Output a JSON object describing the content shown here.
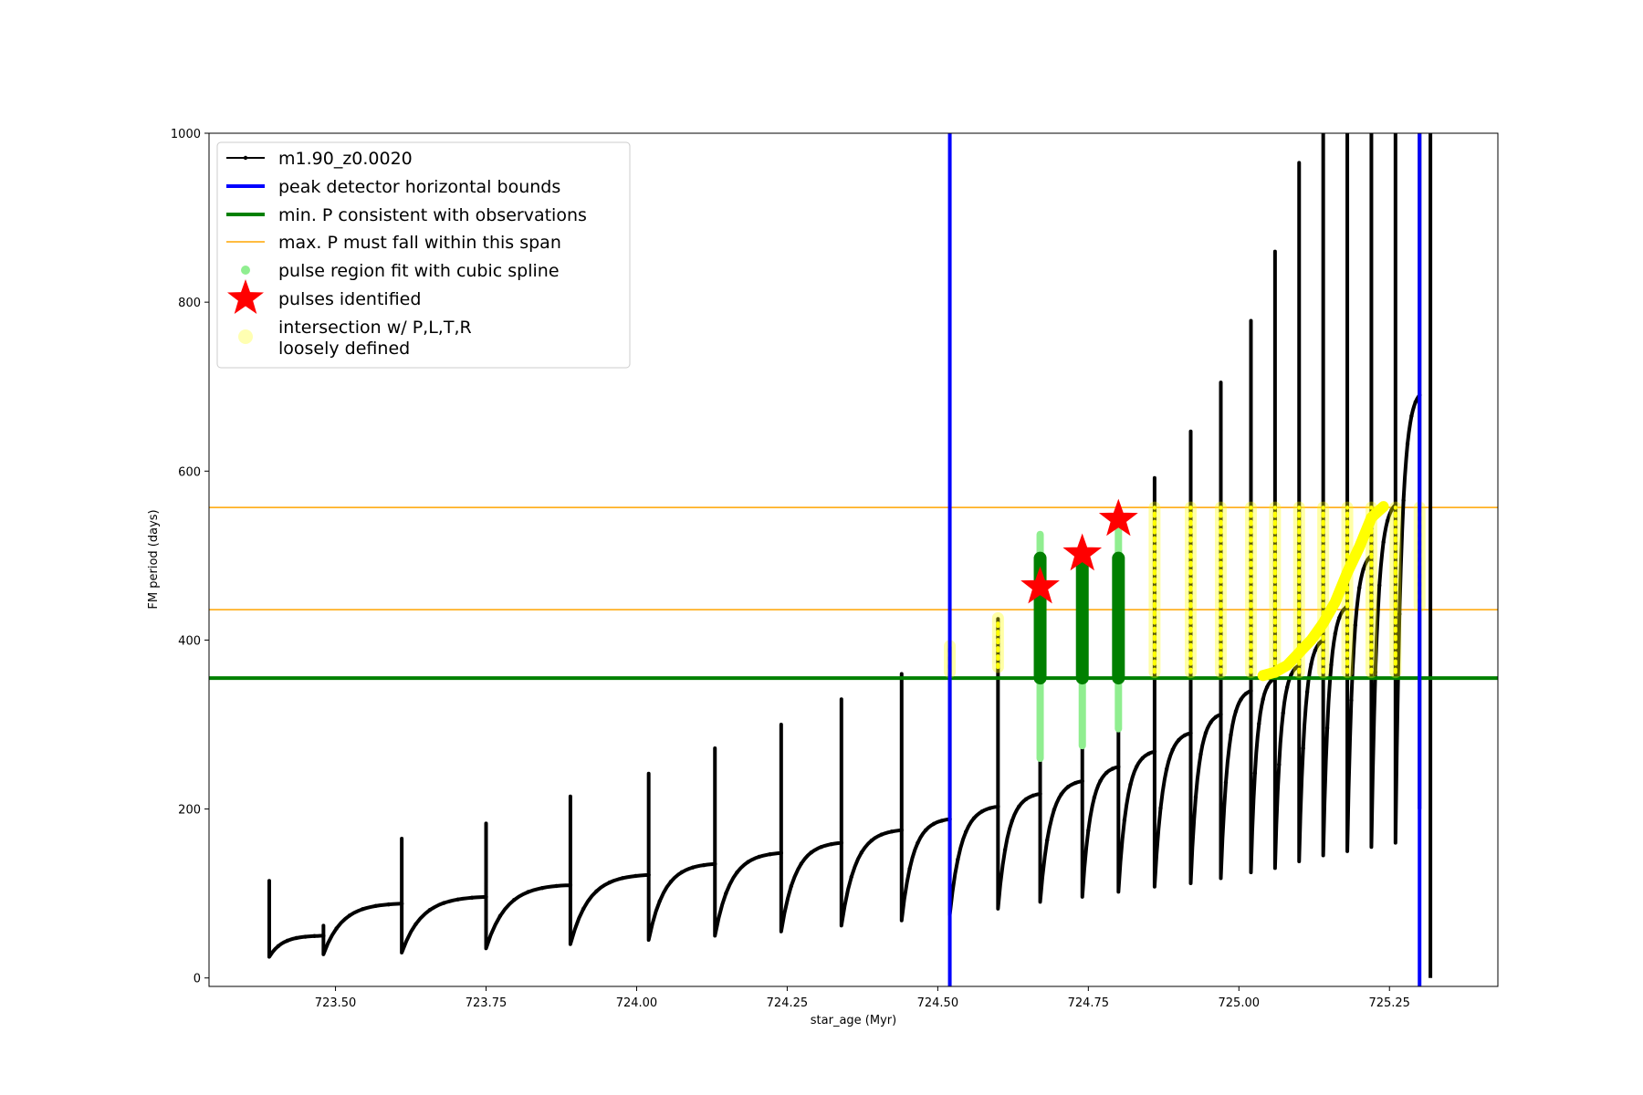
{
  "chart_data": {
    "type": "line",
    "title": "",
    "xlabel": "star_age (Myr)",
    "ylabel": "FM period (days)",
    "xlim": [
      723.29,
      725.43
    ],
    "ylim": [
      -10,
      1000
    ],
    "xticks": [
      "723.50",
      "723.75",
      "724.00",
      "724.25",
      "724.50",
      "724.75",
      "725.00",
      "725.25"
    ],
    "yticks": [
      "0",
      "200",
      "400",
      "600",
      "800",
      "1000"
    ],
    "grid": false,
    "legend_position": "top-left",
    "colors": {
      "track": "#000000",
      "bounds": "#0000ff",
      "min_p": "#008000",
      "max_p_span": "#ffa500",
      "spline_fit": "#90ee90",
      "spline_core": "#008000",
      "pulse_star": "#ff0000",
      "intersection": "#ffff00"
    },
    "series": [
      {
        "name": "m1.90_z0.0020",
        "kind": "track",
        "pulse_ages": [
          723.39,
          723.48,
          723.61,
          723.75,
          723.89,
          724.02,
          724.13,
          724.24,
          724.34,
          724.44,
          724.52,
          724.6,
          724.67,
          724.74,
          724.8,
          724.86,
          724.92,
          724.97,
          725.02,
          725.06,
          725.1,
          725.14,
          725.18,
          725.22,
          725.26,
          725.3
        ],
        "spike_tops": [
          115,
          62,
          165,
          183,
          215,
          242,
          272,
          300,
          330,
          360,
          392,
          425,
          495,
          500,
          505,
          592,
          647,
          705,
          778,
          860,
          965,
          1000,
          1000,
          1000,
          1000,
          1000
        ],
        "minima": [
          25,
          28,
          30,
          35,
          40,
          45,
          50,
          55,
          62,
          68,
          75,
          82,
          90,
          96,
          102,
          108,
          112,
          118,
          125,
          130,
          138,
          145,
          150,
          155,
          160,
          200
        ],
        "plateaus": [
          50,
          88,
          96,
          110,
          122,
          135,
          148,
          160,
          175,
          188,
          203,
          218,
          233,
          250,
          268,
          290,
          312,
          340,
          355,
          370,
          400,
          440,
          500,
          560,
          690,
          1000
        ]
      },
      {
        "name": "peak detector horizontal bounds",
        "kind": "vline",
        "x": [
          724.52,
          725.3
        ]
      },
      {
        "name": "min. P consistent with observations",
        "kind": "hline",
        "y": [
          355
        ]
      },
      {
        "name": "max. P must fall within this span",
        "kind": "hline",
        "y": [
          436,
          557
        ]
      },
      {
        "name": "pulse region fit with cubic spline",
        "kind": "vertical-bands",
        "bands": [
          {
            "x": 724.67,
            "y_min": 260,
            "y_max": 525,
            "core_min": 355,
            "core_max": 497
          },
          {
            "x": 724.74,
            "y_min": 275,
            "y_max": 505,
            "core_min": 355,
            "core_max": 500
          },
          {
            "x": 724.8,
            "y_min": 295,
            "y_max": 540,
            "core_min": 355,
            "core_max": 497
          }
        ]
      },
      {
        "name": "pulses identified",
        "kind": "markers",
        "points": [
          {
            "x": 724.67,
            "y": 463
          },
          {
            "x": 724.74,
            "y": 502
          },
          {
            "x": 724.8,
            "y": 543
          }
        ]
      },
      {
        "name": "intersection w/ P,L,T,R\nloosely defined",
        "kind": "segments",
        "segments": [
          {
            "x": 724.52,
            "y_min": 362,
            "y_max": 393
          },
          {
            "x": 724.6,
            "y_min": 368,
            "y_max": 426
          },
          {
            "x": 724.86,
            "y_min": 362,
            "y_max": 557
          },
          {
            "x": 724.92,
            "y_min": 362,
            "y_max": 557
          },
          {
            "x": 724.97,
            "y_min": 362,
            "y_max": 557
          },
          {
            "x": 725.02,
            "y_min": 362,
            "y_max": 557
          },
          {
            "x": 725.06,
            "y_min": 362,
            "y_max": 557
          },
          {
            "x": 725.1,
            "y_min": 362,
            "y_max": 557
          },
          {
            "x": 725.14,
            "y_min": 362,
            "y_max": 557
          },
          {
            "x": 725.18,
            "y_min": 362,
            "y_max": 557
          },
          {
            "x": 725.22,
            "y_min": 362,
            "y_max": 557
          },
          {
            "x": 725.26,
            "y_min": 362,
            "y_max": 557
          },
          {
            "x": 725.3,
            "y_min": 440,
            "y_max": 557
          }
        ],
        "curve": [
          [
            725.04,
            358
          ],
          [
            725.06,
            362
          ],
          [
            725.08,
            370
          ],
          [
            725.1,
            385
          ],
          [
            725.12,
            400
          ],
          [
            725.14,
            420
          ],
          [
            725.16,
            445
          ],
          [
            725.18,
            480
          ],
          [
            725.2,
            510
          ],
          [
            725.22,
            545
          ],
          [
            725.24,
            558
          ]
        ]
      }
    ]
  },
  "legend": {
    "entries": [
      {
        "label": "m1.90_z0.0020",
        "symbol": "track"
      },
      {
        "label": "peak detector horizontal bounds",
        "symbol": "blue-line"
      },
      {
        "label": "min. P consistent with observations",
        "symbol": "green-line"
      },
      {
        "label": "max. P must fall within this span",
        "symbol": "orange-line"
      },
      {
        "label": "pulse region fit with cubic spline",
        "symbol": "green-dot"
      },
      {
        "label": "pulses identified",
        "symbol": "red-star"
      },
      {
        "label": "intersection w/ P,L,T,R",
        "label2": "loosely defined",
        "symbol": "yellow-dot"
      }
    ]
  }
}
